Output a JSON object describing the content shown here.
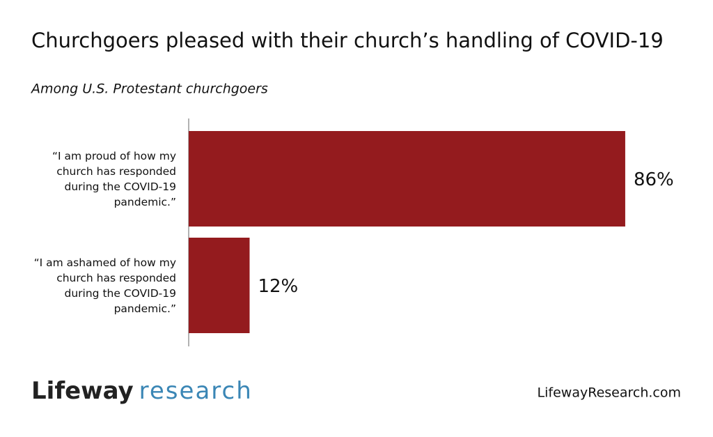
{
  "chart_data": {
    "type": "hbar",
    "title": "Churchgoers pleased with their church’s handling of COVID-19",
    "subtitle": "Among U.S. Protestant churchgoers",
    "categories": [
      "“I am proud of how my church has responded during the COVID-19 pandemic.”",
      "“I am ashamed of how my church has responded during the COVID-19 pandemic.”"
    ],
    "values": [
      86,
      12
    ],
    "value_labels": [
      "86%",
      "12%"
    ],
    "color": "#941b1e"
  },
  "footer": {
    "brand": "Lifeway",
    "brand_suffix": "research",
    "url": "LifewayResearch.com"
  }
}
